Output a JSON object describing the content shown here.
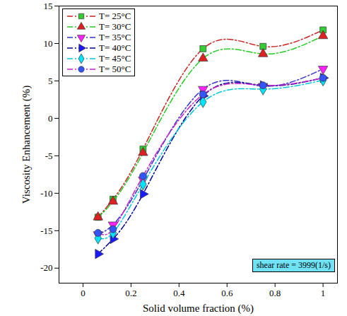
{
  "chart_data": {
    "type": "line",
    "x_label": "Solid volume fraction (%)",
    "y_label": "Viscosity Enhancement (%)",
    "annotation": "shear rate = 3999(1/s)",
    "x": [
      0.0625,
      0.125,
      0.25,
      0.5,
      0.75,
      1.0
    ],
    "series": [
      {
        "name": "T= 25°C",
        "color": "#cc2222",
        "marker": "square",
        "line_style": "dashdot",
        "values": [
          -13.2,
          -10.8,
          -4.1,
          9.3,
          9.6,
          11.8
        ]
      },
      {
        "name": "T= 30°C",
        "color": "#22cc22",
        "marker": "triangle",
        "line_style": "dashdot",
        "values": [
          -13.2,
          -11.1,
          -4.6,
          8.0,
          8.6,
          11.0
        ]
      },
      {
        "name": "T= 35°C",
        "color": "#3333cc",
        "marker": "triangle-down",
        "line_style": "dashdot",
        "values": [
          -15.5,
          -14.2,
          -8.2,
          3.9,
          4.3,
          6.6
        ]
      },
      {
        "name": "T= 40°C",
        "color": "#000099",
        "marker": "triangle-right",
        "line_style": "dashdot",
        "values": [
          -18.1,
          -16.1,
          -10.1,
          3.0,
          4.4,
          5.4
        ]
      },
      {
        "name": "T= 45°C",
        "color": "#00c8dc",
        "marker": "diamond",
        "line_style": "dashdot",
        "values": [
          -16.0,
          -15.3,
          -8.8,
          2.2,
          3.9,
          5.1
        ]
      },
      {
        "name": "T= 50°C",
        "color": "#cc22cc",
        "marker": "circle",
        "line_style": "dashdot",
        "values": [
          -15.3,
          -14.8,
          -7.7,
          3.2,
          4.4,
          5.4
        ]
      }
    ],
    "xlim": [
      -0.1,
      1.06
    ],
    "xticks": [
      0,
      0.2,
      0.4,
      0.6,
      0.8,
      1
    ],
    "ylim": [
      -22,
      15
    ],
    "yticks": [
      -20,
      -15,
      -10,
      -5,
      0,
      5,
      10,
      15
    ],
    "grid": false,
    "legend": "top-left"
  }
}
